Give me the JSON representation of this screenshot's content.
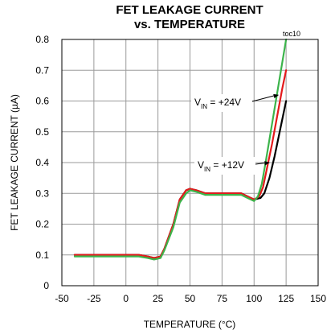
{
  "chart_data": {
    "type": "line",
    "title_line1": "FET LEAKAGE CURRENT",
    "title_line2": "vs. TEMPERATURE",
    "tag": "toc10",
    "xlabel": "TEMPERATURE (°C)",
    "ylabel": "FET LEAKAGE CURRENT (µA)",
    "xlim": [
      -50,
      150
    ],
    "ylim": [
      0,
      0.8
    ],
    "xticks": [
      "-50",
      "-25",
      "0",
      "25",
      "50",
      "75",
      "100",
      "125",
      "150"
    ],
    "yticks": [
      "0",
      "0.1",
      "0.2",
      "0.3",
      "0.4",
      "0.5",
      "0.6",
      "0.7",
      "0.8"
    ],
    "grid": true,
    "annotations": [
      {
        "prefix": "V",
        "sub": "IN",
        "suffix": " = +24V",
        "target": [
          120,
          0.62
        ]
      },
      {
        "prefix": "V",
        "sub": "IN",
        "suffix": " = +12V",
        "target": [
          113,
          0.4
        ]
      }
    ],
    "series": [
      {
        "color": "#000000",
        "x": [
          -40,
          0,
          10,
          17,
          22,
          27,
          30,
          37,
          42,
          47,
          50,
          55,
          62,
          70,
          80,
          90,
          95,
          100,
          105,
          108,
          112,
          116,
          120,
          125
        ],
        "y": [
          0.1,
          0.1,
          0.1,
          0.095,
          0.09,
          0.095,
          0.12,
          0.2,
          0.28,
          0.31,
          0.315,
          0.31,
          0.3,
          0.3,
          0.3,
          0.3,
          0.29,
          0.28,
          0.285,
          0.3,
          0.35,
          0.42,
          0.5,
          0.6
        ]
      },
      {
        "color": "#e41a1c",
        "x": [
          -40,
          0,
          10,
          17,
          22,
          27,
          30,
          37,
          42,
          47,
          50,
          55,
          62,
          70,
          80,
          90,
          95,
          100,
          104,
          107,
          110,
          114,
          118,
          122,
          125
        ],
        "y": [
          0.1,
          0.1,
          0.1,
          0.095,
          0.09,
          0.095,
          0.12,
          0.2,
          0.28,
          0.31,
          0.315,
          0.31,
          0.3,
          0.3,
          0.3,
          0.3,
          0.29,
          0.28,
          0.29,
          0.32,
          0.38,
          0.46,
          0.55,
          0.64,
          0.7
        ]
      },
      {
        "color": "#3cb44b",
        "x": [
          -40,
          0,
          10,
          17,
          22,
          27,
          30,
          37,
          42,
          47,
          50,
          55,
          62,
          70,
          80,
          90,
          95,
          100,
          103,
          106,
          109,
          113,
          117,
          121,
          125
        ],
        "y": [
          0.095,
          0.095,
          0.095,
          0.09,
          0.085,
          0.09,
          0.115,
          0.19,
          0.27,
          0.3,
          0.31,
          0.305,
          0.295,
          0.295,
          0.295,
          0.295,
          0.285,
          0.275,
          0.29,
          0.33,
          0.4,
          0.5,
          0.6,
          0.7,
          0.8
        ]
      }
    ]
  }
}
